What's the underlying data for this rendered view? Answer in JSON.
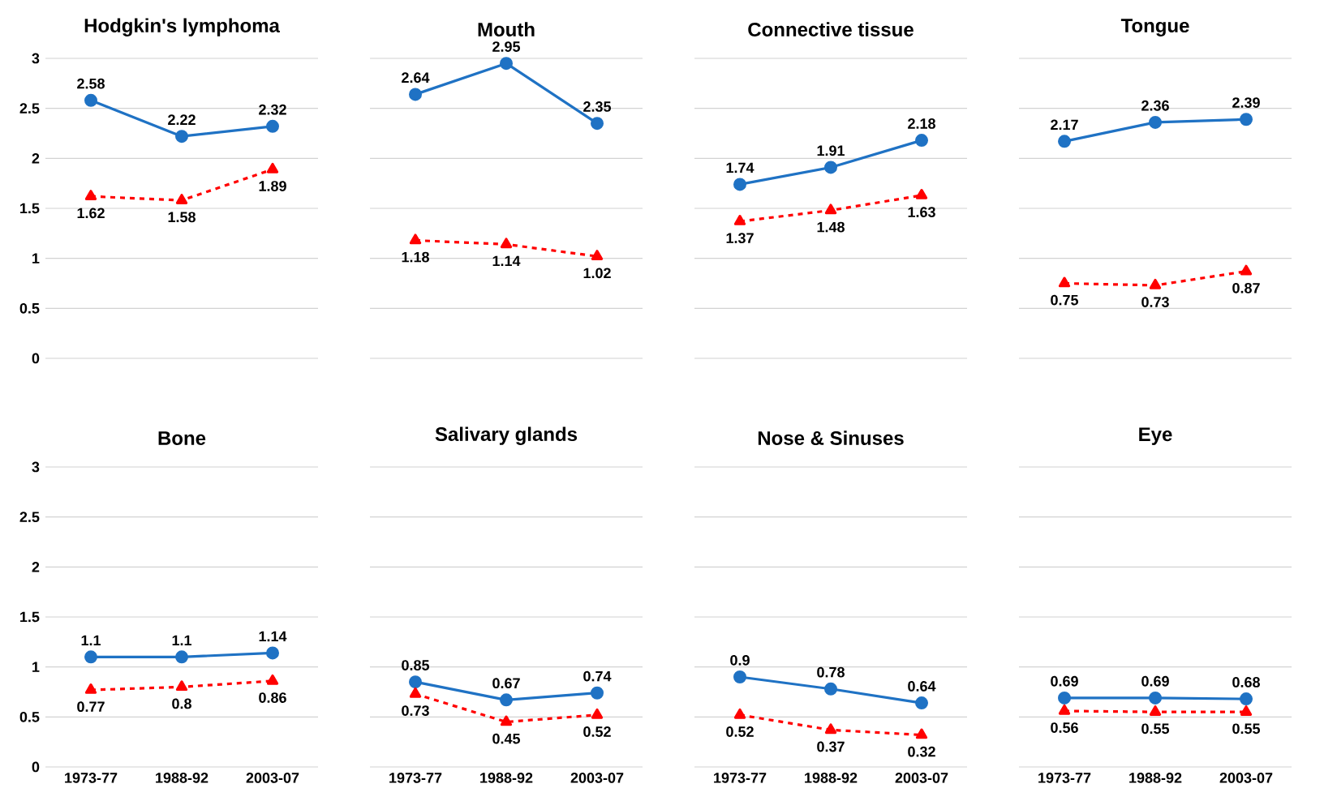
{
  "chart_data": [
    {
      "type": "line",
      "title": "Hodgkin's lymphoma",
      "categories": [
        "1973-77",
        "1988-92",
        "2003-07"
      ],
      "series": [
        {
          "color": "#1f72c4",
          "values": [
            2.58,
            2.22,
            2.32
          ],
          "marker": "circle",
          "line_style": "solid"
        },
        {
          "color": "#ff0000",
          "values": [
            1.62,
            1.58,
            1.89
          ],
          "marker": "triangle",
          "line_style": "dashed"
        }
      ],
      "ylim": [
        0,
        3
      ],
      "yticks": [
        0,
        0.5,
        1,
        1.5,
        2,
        2.5,
        3
      ],
      "grid": "y",
      "data_labels": true,
      "tick_labels": "y"
    },
    {
      "type": "line",
      "title": "Mouth",
      "categories": [
        "1973-77",
        "1988-92",
        "2003-07"
      ],
      "series": [
        {
          "color": "#1f72c4",
          "values": [
            2.64,
            2.95,
            2.35
          ],
          "marker": "circle",
          "line_style": "solid"
        },
        {
          "color": "#ff0000",
          "values": [
            1.18,
            1.14,
            1.02
          ],
          "marker": "triangle",
          "line_style": "dashed"
        }
      ],
      "ylim": [
        0,
        3
      ],
      "yticks": [
        0,
        0.5,
        1,
        1.5,
        2,
        2.5,
        3
      ],
      "grid": "y",
      "data_labels": true,
      "tick_labels": false
    },
    {
      "type": "line",
      "title": "Connective tissue",
      "categories": [
        "1973-77",
        "1988-92",
        "2003-07"
      ],
      "series": [
        {
          "color": "#1f72c4",
          "values": [
            1.74,
            1.91,
            2.18
          ],
          "marker": "circle",
          "line_style": "solid"
        },
        {
          "color": "#ff0000",
          "values": [
            1.37,
            1.48,
            1.63
          ],
          "marker": "triangle",
          "line_style": "dashed"
        }
      ],
      "ylim": [
        0,
        3
      ],
      "yticks": [
        0,
        0.5,
        1,
        1.5,
        2,
        2.5,
        3
      ],
      "grid": "y",
      "data_labels": true,
      "tick_labels": false
    },
    {
      "type": "line",
      "title": "Tongue",
      "categories": [
        "1973-77",
        "1988-92",
        "2003-07"
      ],
      "series": [
        {
          "color": "#1f72c4",
          "values": [
            2.17,
            2.36,
            2.39
          ],
          "marker": "circle",
          "line_style": "solid"
        },
        {
          "color": "#ff0000",
          "values": [
            0.75,
            0.73,
            0.87
          ],
          "marker": "triangle",
          "line_style": "dashed"
        }
      ],
      "ylim": [
        0,
        3
      ],
      "yticks": [
        0,
        0.5,
        1,
        1.5,
        2,
        2.5,
        3
      ],
      "grid": "y",
      "data_labels": true,
      "tick_labels": false
    },
    {
      "type": "line",
      "title": "Bone",
      "categories": [
        "1973-77",
        "1988-92",
        "2003-07"
      ],
      "series": [
        {
          "color": "#1f72c4",
          "values": [
            1.1,
            1.1,
            1.14
          ],
          "marker": "circle",
          "line_style": "solid"
        },
        {
          "color": "#ff0000",
          "values": [
            0.77,
            0.8,
            0.86
          ],
          "marker": "triangle",
          "line_style": "dashed"
        }
      ],
      "ylim": [
        0,
        3
      ],
      "yticks": [
        0,
        0.5,
        1,
        1.5,
        2,
        2.5,
        3
      ],
      "grid": "y",
      "data_labels": true
    },
    {
      "type": "line",
      "title": "Salivary glands",
      "categories": [
        "1973-77",
        "1988-92",
        "2003-07"
      ],
      "series": [
        {
          "color": "#1f72c4",
          "values": [
            0.85,
            0.67,
            0.74
          ],
          "marker": "circle",
          "line_style": "solid"
        },
        {
          "color": "#ff0000",
          "values": [
            0.73,
            0.45,
            0.52
          ],
          "marker": "triangle",
          "line_style": "dashed"
        }
      ],
      "ylim": [
        0,
        3
      ],
      "yticks": [
        0,
        0.5,
        1,
        1.5,
        2,
        2.5,
        3
      ],
      "grid": "y",
      "data_labels": true,
      "tick_labels": "x"
    },
    {
      "type": "line",
      "title": "Nose & Sinuses",
      "categories": [
        "1973-77",
        "1988-92",
        "2003-07"
      ],
      "series": [
        {
          "color": "#1f72c4",
          "values": [
            0.9,
            0.78,
            0.64
          ],
          "marker": "circle",
          "line_style": "solid"
        },
        {
          "color": "#ff0000",
          "values": [
            0.52,
            0.37,
            0.32
          ],
          "marker": "triangle",
          "line_style": "dashed"
        }
      ],
      "ylim": [
        0,
        3
      ],
      "yticks": [
        0,
        0.5,
        1,
        1.5,
        2,
        2.5,
        3
      ],
      "grid": "y",
      "data_labels": true,
      "tick_labels": "x"
    },
    {
      "type": "line",
      "title": "Eye",
      "categories": [
        "1973-77",
        "1988-92",
        "2003-07"
      ],
      "series": [
        {
          "color": "#1f72c4",
          "values": [
            0.69,
            0.69,
            0.68
          ],
          "marker": "circle",
          "line_style": "solid"
        },
        {
          "color": "#ff0000",
          "values": [
            0.56,
            0.55,
            0.55
          ],
          "marker": "triangle",
          "line_style": "dashed"
        }
      ],
      "ylim": [
        0,
        3
      ],
      "yticks": [
        0,
        0.5,
        1,
        1.5,
        2,
        2.5,
        3
      ],
      "grid": "y",
      "data_labels": true,
      "tick_labels": "x"
    }
  ]
}
